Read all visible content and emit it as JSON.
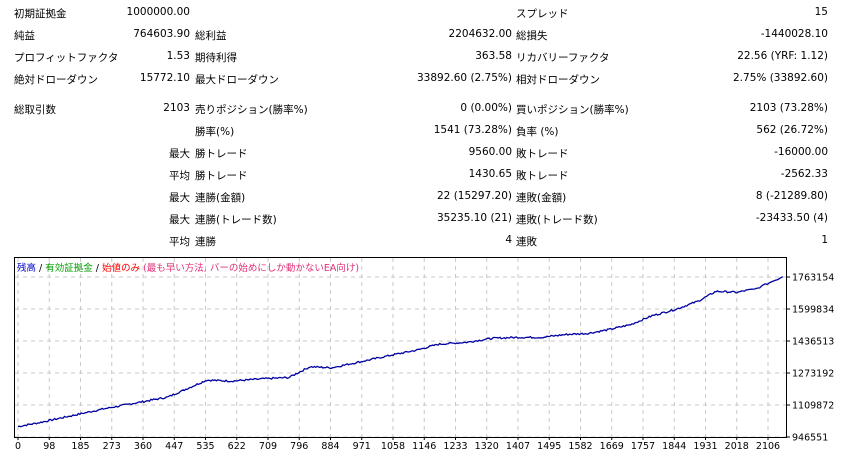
{
  "summary": {
    "initial_deposit_label": "初期証拠金",
    "initial_deposit": "1000000.00",
    "spread_label": "スプレッド",
    "spread": "15",
    "net_profit_label": "純益",
    "net_profit": "764603.90",
    "gross_profit_label": "総利益",
    "gross_profit": "2204632.00",
    "gross_loss_label": "総損失",
    "gross_loss": "-1440028.10",
    "profit_factor_label": "プロフィットファクタ",
    "profit_factor": "1.53",
    "expected_payoff_label": "期待利得",
    "expected_payoff": "363.58",
    "recovery_factor_label": "リカバリーファクタ",
    "recovery_factor": "22.56 (YRF: 1.12)",
    "abs_drawdown_label": "絶対ドローダウン",
    "abs_drawdown": "15772.10",
    "max_drawdown_label": "最大ドローダウン",
    "max_drawdown": "33892.60 (2.75%)",
    "rel_drawdown_label": "相対ドローダウン",
    "rel_drawdown": "2.75% (33892.60)"
  },
  "trades": {
    "total_label": "総取引数",
    "total": "2103",
    "short_label": "売りポジション(勝率%)",
    "short": "0 (0.00%)",
    "long_label": "買いポジション(勝率%)",
    "long": "2103 (73.28%)",
    "win_rate_label": "勝率(%)",
    "win_rate": "1541 (73.28%)",
    "loss_rate_label": "負率 (%)",
    "loss_rate": "562 (26.72%)",
    "max_prefix": "最大",
    "avg_prefix": "平均",
    "largest_win_label": "勝トレード",
    "largest_win": "9560.00",
    "largest_loss_label": "敗トレード",
    "largest_loss": "-16000.00",
    "avg_win_label": "勝トレード",
    "avg_win": "1430.65",
    "avg_loss_label": "敗トレード",
    "avg_loss": "-2562.33",
    "max_consec_wins_amt_label": "連勝(金額)",
    "max_consec_wins_amt": "22 (15297.20)",
    "max_consec_losses_amt_label": "連敗(金額)",
    "max_consec_losses_amt": "8 (-21289.80)",
    "max_consec_wins_cnt_label": "連勝(トレード数)",
    "max_consec_wins_cnt": "35235.10 (21)",
    "max_consec_losses_cnt_label": "連敗(トレード数)",
    "max_consec_losses_cnt": "-23433.50 (4)",
    "avg_consec_wins_label": "連勝",
    "avg_consec_wins": "4",
    "avg_consec_losses_label": "連敗",
    "avg_consec_losses": "1"
  },
  "legend": {
    "balance": "残高",
    "sep": " / ",
    "equity": "有効証拠金",
    "mode": "始値のみ",
    "mode_note": " (最も早い方法, バーの始めにしか動かないEA向け)",
    "colors": {
      "balance": "#0000c8",
      "equity": "#00a000",
      "mode": "#ff0000",
      "note": "#e0307a"
    }
  },
  "chart_data": {
    "type": "line",
    "title": "",
    "xlabel": "",
    "ylabel": "",
    "x_ticks": [
      "0",
      "98",
      "185",
      "273",
      "360",
      "447",
      "535",
      "622",
      "709",
      "796",
      "884",
      "971",
      "1058",
      "1146",
      "1233",
      "1320",
      "1407",
      "1495",
      "1582",
      "1669",
      "1757",
      "1844",
      "1931",
      "2018",
      "2106"
    ],
    "y_ticks": [
      "946551",
      "1109872",
      "1273192",
      "1436513",
      "1599834",
      "1763154"
    ],
    "ylim": [
      946551,
      1763154
    ],
    "xlim": [
      0,
      2150
    ],
    "grid": true,
    "series": [
      {
        "name": "残高",
        "color": "#0000a0",
        "x": [
          0,
          60,
          150,
          240,
          330,
          420,
          530,
          600,
          700,
          760,
          820,
          880,
          960,
          1050,
          1120,
          1180,
          1260,
          1330,
          1400,
          1470,
          1540,
          1600,
          1660,
          1720,
          1780,
          1850,
          1910,
          1960,
          2020,
          2060,
          2103
        ],
        "y": [
          1000000,
          1020000,
          1055000,
          1090000,
          1120000,
          1150000,
          1237000,
          1232000,
          1245000,
          1250000,
          1305000,
          1300000,
          1330000,
          1365000,
          1390000,
          1420000,
          1430000,
          1450000,
          1455000,
          1455000,
          1470000,
          1475000,
          1495000,
          1520000,
          1565000,
          1600000,
          1640000,
          1690000,
          1685000,
          1700000,
          1764603
        ]
      }
    ]
  }
}
